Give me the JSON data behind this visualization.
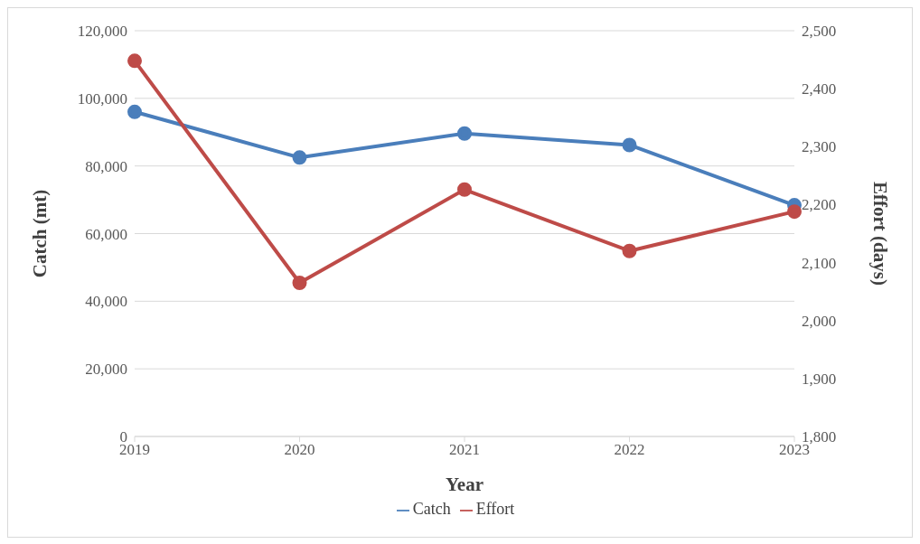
{
  "chart_data": {
    "type": "line",
    "xlabel": "Year",
    "ylabel": "Catch (mt)",
    "y2label": "Effort (days)",
    "categories": [
      "2019",
      "2020",
      "2021",
      "2022",
      "2023"
    ],
    "series": [
      {
        "name": "Catch",
        "color": "#4a7ebb",
        "values": [
          96000,
          82500,
          89600,
          86200,
          68400
        ]
      },
      {
        "name": "Effort",
        "color": "#be4b48",
        "values": [
          2448,
          2065,
          2226,
          2120,
          2188
        ],
        "axis": "y2"
      }
    ],
    "ylim": [
      0,
      120000
    ],
    "yticks": [
      {
        "value": 0,
        "label": "0"
      },
      {
        "value": 20000,
        "label": "20,000"
      },
      {
        "value": 40000,
        "label": "40,000"
      },
      {
        "value": 60000,
        "label": "60,000"
      },
      {
        "value": 80000,
        "label": "80,000"
      },
      {
        "value": 100000,
        "label": "100,000"
      },
      {
        "value": 120000,
        "label": "120,000"
      }
    ],
    "y2lim": [
      1800,
      2500
    ],
    "y2ticks": [
      {
        "value": 1800,
        "label": "1,800"
      },
      {
        "value": 1900,
        "label": "1,900"
      },
      {
        "value": 2000,
        "label": "2,000"
      },
      {
        "value": 2100,
        "label": "2,100"
      },
      {
        "value": 2200,
        "label": "2,200"
      },
      {
        "value": 2300,
        "label": "2,300"
      },
      {
        "value": 2400,
        "label": "2,400"
      },
      {
        "value": 2500,
        "label": "2,500"
      }
    ],
    "grid": "y",
    "legend": "bottom",
    "marker": "circle",
    "line_style": "solid"
  }
}
